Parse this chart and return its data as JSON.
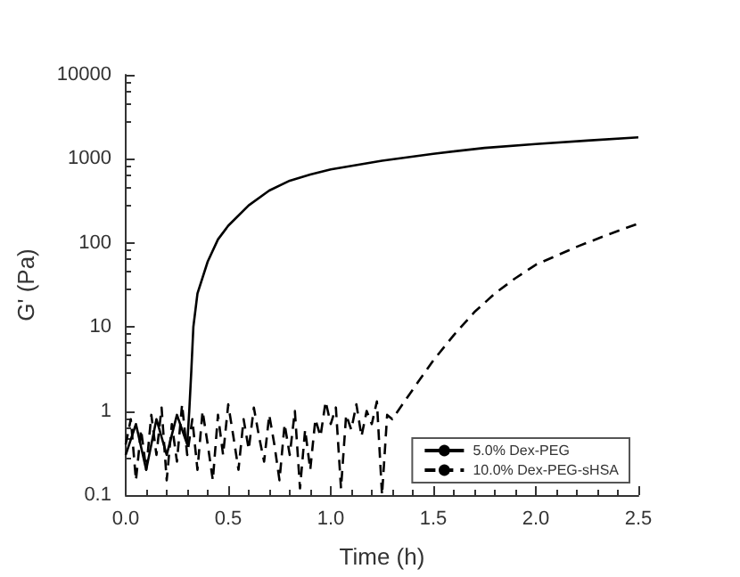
{
  "chart_data": {
    "type": "line",
    "xlabel": "Time (h)",
    "ylabel": "G' (Pa)",
    "log": "y",
    "xlim": [
      0,
      2.5
    ],
    "xticks": [
      {
        "value": 0,
        "label": "0.0"
      },
      0.5,
      {
        "value": 1,
        "label": "1.0"
      },
      1.5,
      {
        "value": 2,
        "label": "2.0"
      },
      2.5
    ],
    "ylim": [
      0.1,
      10000
    ],
    "yticks": [
      0.1,
      1,
      10,
      100,
      1000,
      10000
    ],
    "grid": false,
    "legend": "bottom right",
    "marker": "none",
    "series": [
      {
        "name": "5.0% Dex-PEG",
        "color": "#000000",
        "line_style": "solid",
        "x": [
          0,
          0.05,
          0.1,
          0.15,
          0.2,
          0.25,
          0.3,
          0.31,
          0.32,
          0.33,
          0.35,
          0.4,
          0.45,
          0.5,
          0.6,
          0.7,
          0.8,
          0.9,
          1.0,
          1.25,
          1.5,
          1.75,
          2.0,
          2.25,
          2.5
        ],
        "values": [
          0.3,
          0.7,
          0.2,
          0.8,
          0.3,
          0.9,
          0.4,
          1,
          3,
          10,
          25,
          60,
          110,
          160,
          280,
          420,
          550,
          650,
          750,
          950,
          1150,
          1350,
          1500,
          1650,
          1800
        ]
      },
      {
        "name": "10.0% Dex-PEG-sHSA",
        "color": "#000000",
        "line_style": "dashed",
        "x": [
          0,
          0.025,
          0.05,
          0.075,
          0.1,
          0.125,
          0.15,
          0.175,
          0.2,
          0.225,
          0.25,
          0.275,
          0.3,
          0.325,
          0.35,
          0.375,
          0.4,
          0.425,
          0.45,
          0.475,
          0.5,
          0.525,
          0.55,
          0.575,
          0.6,
          0.625,
          0.65,
          0.675,
          0.7,
          0.725,
          0.75,
          0.775,
          0.8,
          0.825,
          0.85,
          0.875,
          0.9,
          0.925,
          0.95,
          0.975,
          1.0,
          1.025,
          1.05,
          1.075,
          1.1,
          1.125,
          1.15,
          1.175,
          1.2,
          1.225,
          1.25,
          1.275,
          1.3,
          1.4,
          1.5,
          1.6,
          1.7,
          1.8,
          1.9,
          2.0,
          2.2,
          2.35,
          2.5
        ],
        "values": [
          0.4,
          0.8,
          0.15,
          0.6,
          0.2,
          0.9,
          0.3,
          1.1,
          0.15,
          0.7,
          0.25,
          1.2,
          0.3,
          0.8,
          0.2,
          1.0,
          0.4,
          0.15,
          0.9,
          0.3,
          1.2,
          0.5,
          0.2,
          0.8,
          0.35,
          1.1,
          0.5,
          0.25,
          0.9,
          0.4,
          0.15,
          0.7,
          0.3,
          1.0,
          0.12,
          0.6,
          0.2,
          0.8,
          0.5,
          1.3,
          0.7,
          1.1,
          0.12,
          0.9,
          0.6,
          1.2,
          0.5,
          1.0,
          0.7,
          1.3,
          0.1,
          0.9,
          0.8,
          1.8,
          4,
          8,
          15,
          25,
          38,
          55,
          90,
          125,
          170
        ]
      }
    ]
  }
}
